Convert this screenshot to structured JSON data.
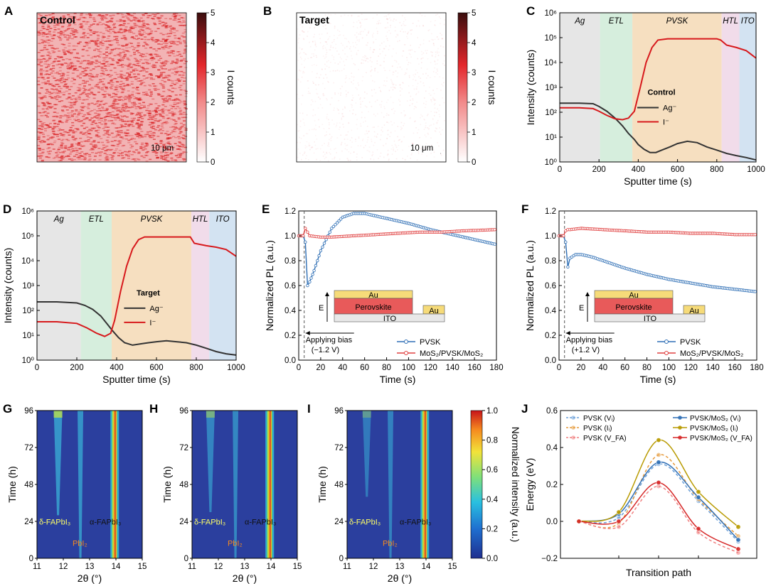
{
  "colors": {
    "red": "#d7191c",
    "dark": "#333333",
    "blue": "#2f6fb5",
    "red2": "#e04040",
    "gold": "#c9a400",
    "lblue": "#6a9fd8",
    "orange": "#e69a3c",
    "pink": "#f08080"
  },
  "chart_data": [
    {
      "id": "A",
      "type": "heatmap",
      "panel_label": "A",
      "tag": "Control",
      "scale_bar": "10 μm",
      "colorbar_label": "I counts",
      "colorbar_ticks": [
        "0",
        "1",
        "2",
        "3",
        "4",
        "5"
      ],
      "zlim": [
        0,
        5
      ],
      "mean_intensity": 2.2
    },
    {
      "id": "B",
      "type": "heatmap",
      "panel_label": "B",
      "tag": "Target",
      "scale_bar": "10 μm",
      "colorbar_label": "I counts",
      "colorbar_ticks": [
        "0",
        "1",
        "2",
        "3",
        "4",
        "5"
      ],
      "zlim": [
        0,
        5
      ],
      "mean_intensity": 0.3
    },
    {
      "id": "C",
      "type": "line",
      "panel_label": "C",
      "log_y": true,
      "xlabel": "Sputter time (s)",
      "ylabel": "Intensity (counts)",
      "xlim": [
        0,
        1000
      ],
      "ylim": [
        1,
        1000000
      ],
      "xticks": [
        "0",
        "200",
        "400",
        "600",
        "800",
        "1000"
      ],
      "yticks": [
        "10⁰",
        "10¹",
        "10²",
        "10³",
        "10⁴",
        "10⁵",
        "10⁶"
      ],
      "regions": [
        {
          "name": "Ag",
          "from": 0,
          "to": 205,
          "color": "#e6e6e6"
        },
        {
          "name": "ETL",
          "from": 205,
          "to": 370,
          "color": "#d6eedd"
        },
        {
          "name": "PVSK",
          "from": 370,
          "to": 825,
          "color": "#f6dfc0"
        },
        {
          "name": "HTL",
          "from": 825,
          "to": 915,
          "color": "#f1dcea"
        },
        {
          "name": "ITO",
          "from": 915,
          "to": 1000,
          "color": "#d3e3f2"
        }
      ],
      "legend_title": "Control",
      "series": [
        {
          "name": "Ag⁻",
          "color": "#333333",
          "x": [
            0,
            100,
            170,
            200,
            240,
            280,
            320,
            350,
            380,
            400,
            430,
            460,
            490,
            520,
            560,
            600,
            650,
            700,
            750,
            800,
            850,
            900,
            950,
            1000
          ],
          "y": [
            230,
            230,
            220,
            170,
            110,
            60,
            28,
            14,
            8,
            5,
            3.2,
            2.4,
            2.4,
            3.0,
            4.0,
            5.5,
            6.8,
            6.0,
            4.0,
            3.0,
            2.2,
            1.8,
            1.5,
            1.2
          ]
        },
        {
          "name": "I⁻",
          "color": "#d7191c",
          "x": [
            0,
            100,
            170,
            200,
            240,
            280,
            320,
            350,
            380,
            410,
            440,
            470,
            500,
            550,
            600,
            700,
            800,
            820,
            850,
            900,
            950,
            1000
          ],
          "y": [
            150,
            150,
            140,
            110,
            75,
            55,
            50,
            58,
            110,
            1000,
            10000,
            40000,
            80000,
            90000,
            90000,
            90000,
            90000,
            80000,
            50000,
            40000,
            30000,
            15000
          ]
        }
      ]
    },
    {
      "id": "D",
      "type": "line",
      "panel_label": "D",
      "log_y": true,
      "xlabel": "Sputter time (s)",
      "ylabel": "Intensity (counts)",
      "xlim": [
        0,
        1000
      ],
      "ylim": [
        1,
        1000000
      ],
      "xticks": [
        "0",
        "200",
        "400",
        "600",
        "800",
        "1000"
      ],
      "yticks": [
        "10⁰",
        "10¹",
        "10²",
        "10³",
        "10⁴",
        "10⁵",
        "10⁶"
      ],
      "regions": [
        {
          "name": "Ag",
          "from": 0,
          "to": 220,
          "color": "#e6e6e6"
        },
        {
          "name": "ETL",
          "from": 220,
          "to": 375,
          "color": "#d6eedd"
        },
        {
          "name": "PVSK",
          "from": 375,
          "to": 775,
          "color": "#f6dfc0"
        },
        {
          "name": "HTL",
          "from": 775,
          "to": 865,
          "color": "#f1dcea"
        },
        {
          "name": "ITO",
          "from": 865,
          "to": 1000,
          "color": "#d3e3f2"
        }
      ],
      "legend_title": "Target",
      "series": [
        {
          "name": "Ag⁻",
          "color": "#333333",
          "x": [
            0,
            100,
            200,
            240,
            280,
            320,
            350,
            380,
            410,
            440,
            480,
            520,
            560,
            600,
            650,
            700,
            750,
            800,
            850,
            900,
            950,
            1000
          ],
          "y": [
            220,
            220,
            200,
            160,
            110,
            60,
            30,
            15,
            8,
            5,
            4,
            4.5,
            5,
            5.5,
            6,
            5.5,
            5,
            4,
            3,
            2.2,
            1.8,
            1.6
          ]
        },
        {
          "name": "I⁻",
          "color": "#d7191c",
          "x": [
            0,
            100,
            200,
            250,
            300,
            340,
            370,
            390,
            420,
            450,
            480,
            510,
            540,
            600,
            700,
            770,
            790,
            850,
            900,
            950,
            1000
          ],
          "y": [
            35,
            35,
            30,
            20,
            12,
            9,
            12,
            40,
            600,
            6000,
            30000,
            70000,
            90000,
            90000,
            90000,
            90000,
            50000,
            40000,
            35000,
            28000,
            15000
          ]
        }
      ]
    },
    {
      "id": "E",
      "type": "line",
      "panel_label": "E",
      "xlabel": "Time (s)",
      "ylabel": "Normalized PL (a.u.)",
      "xlim": [
        0,
        180
      ],
      "ylim": [
        0,
        1.2
      ],
      "xticks": [
        "0",
        "20",
        "40",
        "60",
        "80",
        "100",
        "120",
        "140",
        "160",
        "180"
      ],
      "yticks": [
        "0.0",
        "0.2",
        "0.4",
        "0.6",
        "0.8",
        "1.0",
        "1.2"
      ],
      "bias_text": [
        "Applying bias",
        "(−1.2 V)"
      ],
      "bias_time": 5,
      "inset": {
        "E_label": "E",
        "top": "Au",
        "middle": "Perovskite",
        "side": "Au",
        "bottom": "ITO"
      },
      "series": [
        {
          "name": "PVSK",
          "color": "#2f6fb5",
          "x": [
            0,
            4,
            6,
            8,
            10,
            14,
            20,
            30,
            40,
            50,
            60,
            70,
            80,
            100,
            120,
            140,
            160,
            180
          ],
          "y": [
            1.0,
            1.0,
            0.95,
            0.6,
            0.63,
            0.72,
            0.88,
            1.06,
            1.15,
            1.18,
            1.18,
            1.16,
            1.14,
            1.1,
            1.05,
            1.01,
            0.97,
            0.93
          ]
        },
        {
          "name": "MoS₂/PVSK/MoS₂",
          "color": "#e04040",
          "x": [
            0,
            4,
            6,
            8,
            10,
            20,
            30,
            50,
            70,
            90,
            110,
            130,
            150,
            180
          ],
          "y": [
            1.0,
            1.0,
            1.06,
            1.03,
            1.0,
            0.99,
            0.99,
            1.0,
            1.01,
            1.02,
            1.03,
            1.03,
            1.04,
            1.05
          ]
        }
      ]
    },
    {
      "id": "F",
      "type": "line",
      "panel_label": "F",
      "xlabel": "Time (s)",
      "ylabel": "Normalized PL (a.u.)",
      "xlim": [
        0,
        180
      ],
      "ylim": [
        0,
        1.2
      ],
      "xticks": [
        "0",
        "20",
        "40",
        "60",
        "80",
        "100",
        "120",
        "140",
        "160",
        "180"
      ],
      "yticks": [
        "0.0",
        "0.2",
        "0.4",
        "0.6",
        "0.8",
        "1.0",
        "1.2"
      ],
      "bias_text": [
        "Applying bias",
        "(+1.2 V)"
      ],
      "bias_time": 5,
      "inset": {
        "E_label": "E",
        "top": "Au",
        "middle": "Perovskite",
        "side": "Au",
        "bottom": "ITO"
      },
      "series": [
        {
          "name": "PVSK",
          "color": "#2f6fb5",
          "x": [
            0,
            4,
            6,
            8,
            10,
            15,
            20,
            30,
            40,
            60,
            80,
            100,
            120,
            140,
            160,
            180
          ],
          "y": [
            1.0,
            1.0,
            0.95,
            0.75,
            0.82,
            0.85,
            0.85,
            0.83,
            0.8,
            0.74,
            0.69,
            0.65,
            0.62,
            0.59,
            0.57,
            0.55
          ]
        },
        {
          "name": "MoS₂/PVSK/MoS₂",
          "color": "#e04040",
          "x": [
            0,
            4,
            6,
            8,
            10,
            20,
            40,
            60,
            80,
            100,
            120,
            140,
            160,
            180
          ],
          "y": [
            1.0,
            1.0,
            1.04,
            1.05,
            1.05,
            1.06,
            1.05,
            1.04,
            1.03,
            1.03,
            1.02,
            1.02,
            1.01,
            1.01
          ]
        }
      ]
    },
    {
      "id": "G",
      "type": "heatmap",
      "panel_label": "G",
      "xlabel": "2θ (°)",
      "ylabel": "Time (h)",
      "xlim": [
        11,
        15
      ],
      "ylim": [
        0,
        96
      ],
      "xticks": [
        "11",
        "12",
        "13",
        "14",
        "15"
      ],
      "yticks": [
        "0",
        "24",
        "48",
        "72",
        "96"
      ],
      "peak_labels": {
        "delta": "δ-FAPbI₃",
        "pbi2": "PbI₂",
        "alpha": "α-FAPbI₃"
      },
      "peaks": [
        {
          "pos": 11.8,
          "start_h": 28,
          "max_intensity": 0.7
        },
        {
          "pos": 12.65,
          "start_h": 0,
          "max_intensity": 0.65
        },
        {
          "pos": 13.95,
          "start_h": 0,
          "max_intensity": 1.0
        }
      ]
    },
    {
      "id": "H",
      "type": "heatmap",
      "panel_label": "H",
      "xlabel": "2θ (°)",
      "ylabel": "Time (h)",
      "xlim": [
        11,
        15
      ],
      "ylim": [
        0,
        96
      ],
      "xticks": [
        "11",
        "12",
        "13",
        "14",
        "15"
      ],
      "yticks": [
        "0",
        "24",
        "48",
        "72",
        "96"
      ],
      "peak_labels": {
        "delta": "δ-FAPbI₃",
        "pbi2": "PbI₂",
        "alpha": "α-FAPbI₃"
      },
      "peaks": [
        {
          "pos": 11.7,
          "start_h": 30,
          "max_intensity": 0.45
        },
        {
          "pos": 12.65,
          "start_h": 0,
          "max_intensity": 0.5
        },
        {
          "pos": 13.95,
          "start_h": 0,
          "max_intensity": 1.0
        }
      ]
    },
    {
      "id": "I",
      "type": "heatmap",
      "panel_label": "I",
      "xlabel": "2θ (°)",
      "ylabel": "Time (h)",
      "xlim": [
        11,
        15
      ],
      "ylim": [
        0,
        96
      ],
      "xticks": [
        "11",
        "12",
        "13",
        "14",
        "15"
      ],
      "yticks": [
        "0",
        "24",
        "48",
        "72",
        "96"
      ],
      "peak_labels": {
        "delta": "δ-FAPbI₃",
        "pbi2": "PbI₂",
        "alpha": "α-FAPbI₃"
      },
      "colorbar_label": "Normalized intensity (a.u.)",
      "colorbar_ticks": [
        "0.0",
        "0.2",
        "0.4",
        "0.6",
        "0.8",
        "1.0"
      ],
      "peaks": [
        {
          "pos": 11.75,
          "start_h": 40,
          "max_intensity": 0.3
        },
        {
          "pos": 12.65,
          "start_h": 0,
          "max_intensity": 0.4
        },
        {
          "pos": 13.95,
          "start_h": 0,
          "max_intensity": 1.0
        }
      ]
    },
    {
      "id": "J",
      "type": "line",
      "panel_label": "J",
      "xlabel": "Transition path",
      "ylabel": "Energy (eV)",
      "ylim": [
        -0.2,
        0.6
      ],
      "yticks": [
        "−0.2",
        "0.0",
        "0.2",
        "0.4",
        "0.6"
      ],
      "x": [
        0,
        1,
        2,
        3,
        4
      ],
      "series": [
        {
          "name": "PVSK (Vᵢ)",
          "color": "#6a9fd8",
          "dashed": true,
          "y": [
            0,
            0.02,
            0.31,
            0.11,
            -0.11
          ]
        },
        {
          "name": "PVSK (Iᵢ)",
          "color": "#e69a3c",
          "dashed": true,
          "y": [
            0,
            -0.01,
            0.36,
            0.12,
            -0.08
          ]
        },
        {
          "name": "PVSK (V_FA)",
          "color": "#f08080",
          "dashed": true,
          "y": [
            0,
            -0.03,
            0.19,
            -0.06,
            -0.17
          ]
        },
        {
          "name": "PVSK/MoS₂ (Vᵢ)",
          "color": "#2f6fb5",
          "dashed": false,
          "y": [
            0,
            0.04,
            0.32,
            0.13,
            -0.1
          ]
        },
        {
          "name": "PVSK/MoS₂ (Iᵢ)",
          "color": "#b89a00",
          "dashed": false,
          "y": [
            0,
            0.05,
            0.44,
            0.16,
            -0.03
          ]
        },
        {
          "name": "PVSK/MoS₂ (V_FA)",
          "color": "#d62828",
          "dashed": false,
          "y": [
            0,
            0.0,
            0.21,
            -0.04,
            -0.15
          ]
        }
      ]
    }
  ]
}
